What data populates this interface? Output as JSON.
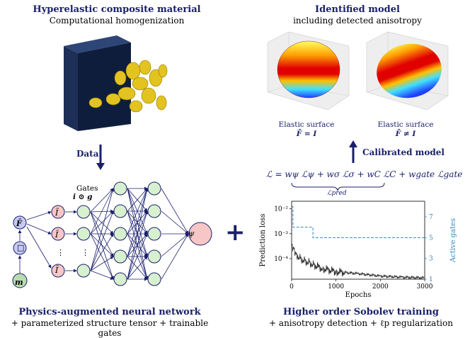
{
  "left": {
    "title": "Hyperelastic composite material",
    "subtitle": "Computational homogenization",
    "arrow_label": "Data",
    "network": {
      "input_F": "F̄",
      "input_box": "□",
      "input_m": "m",
      "invariants": [
        "Ĩ",
        "Ĩ",
        "⋮",
        "Ĩ"
      ],
      "gates_label": "Gates",
      "gates_expr": "i ⊙ g",
      "output": "ψ"
    },
    "bottom_title": "Physics-augmented neural network",
    "bottom_subtitle": "+ parameterized structure tensor + trainable gates"
  },
  "plus": "+",
  "right": {
    "title": "Identified model",
    "subtitle": "including detected anisotropy",
    "surfaces": [
      {
        "caption": "Elastic surface",
        "sub": "F̄ = I"
      },
      {
        "caption": "Elastic surface",
        "sub": "F̄ ≠ I"
      }
    ],
    "arrow_label": "Calibrated model",
    "loss_formula": "ℒ = wψ ℒψ + wσ ℒσ + wC ℒC + wgate ℒgate",
    "loss_brace_label": "ℒpred",
    "bottom_title": "Higher order Sobolev training",
    "bottom_subtitle": "+ anisotropy detection + ℓp regularization"
  },
  "chart_data": {
    "type": "line",
    "xlabel": "Epochs",
    "ylabel": "Prediction loss",
    "y2label": "Active gates",
    "xlim": [
      0,
      3000
    ],
    "xticks": [
      0,
      1000,
      2000,
      3000
    ],
    "ylim_log": [
      1.5e-05,
      0.02
    ],
    "yticks": [
      "10⁻²",
      "10⁻³",
      "10⁻⁴"
    ],
    "y2ticks": [
      1,
      3,
      5,
      7
    ],
    "y2lim": [
      1,
      8.5
    ],
    "series": [
      {
        "name": "loss",
        "x": [
          0,
          50,
          100,
          200,
          300,
          400,
          500,
          700,
          1000,
          1500,
          2000,
          2500,
          3000
        ],
        "y": [
          0.00035,
          0.00025,
          0.00015,
          0.0001,
          8e-05,
          7e-05,
          5.5e-05,
          4e-05,
          3e-05,
          2.5e-05,
          2e-05,
          1.8e-05,
          1.7e-05
        ]
      },
      {
        "name": "gates",
        "x": [
          0,
          30,
          30,
          480,
          480,
          3000
        ],
        "y": [
          8,
          8,
          6,
          6,
          5,
          5
        ]
      }
    ]
  }
}
